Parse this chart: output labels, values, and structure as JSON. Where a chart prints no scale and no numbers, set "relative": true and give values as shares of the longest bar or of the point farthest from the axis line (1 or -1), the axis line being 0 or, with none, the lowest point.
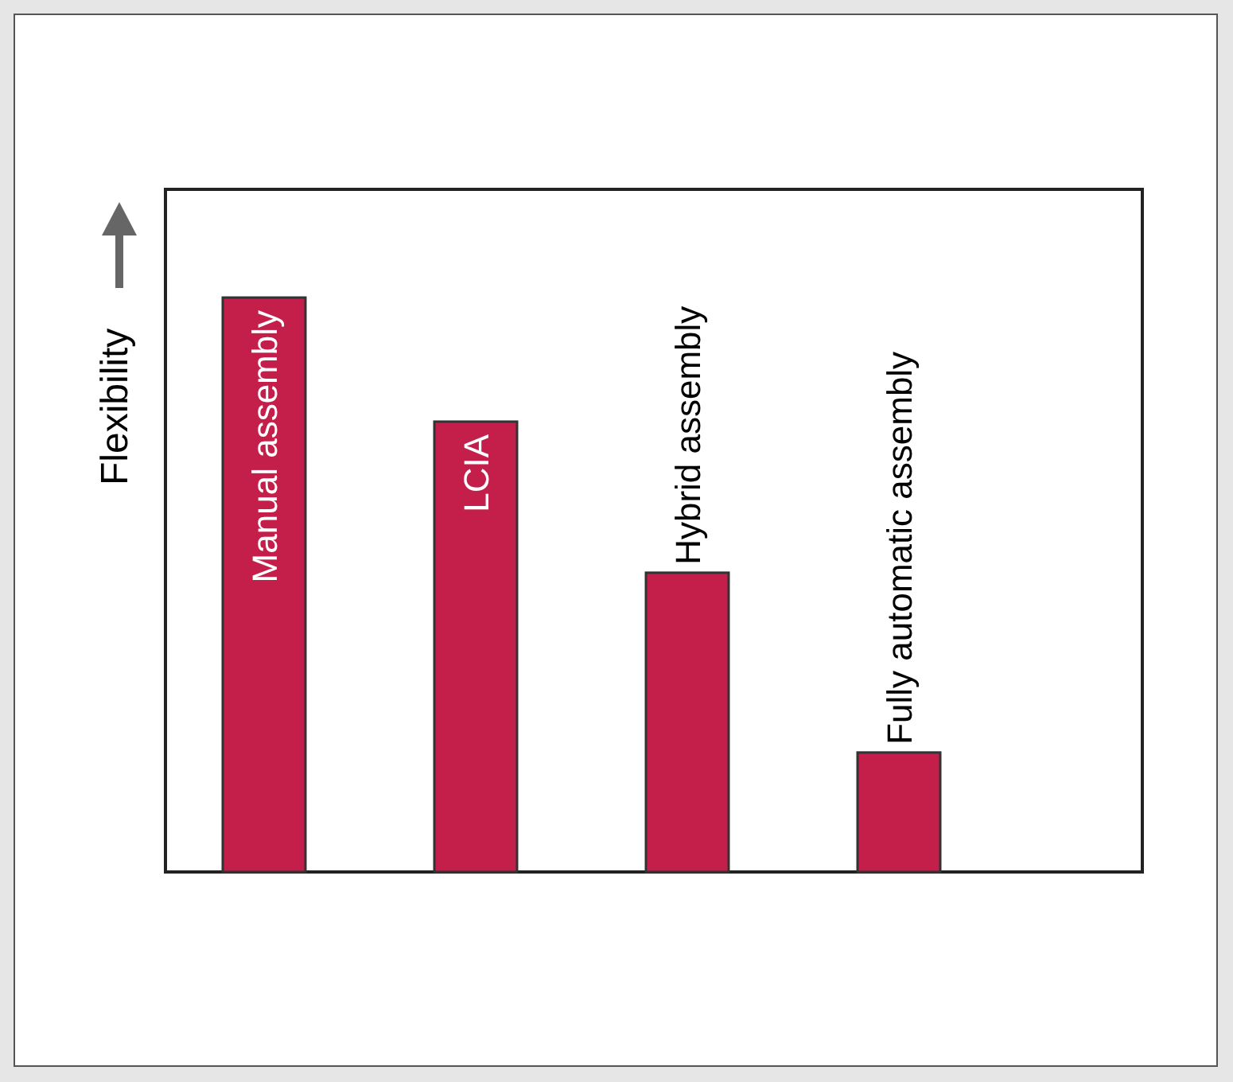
{
  "chart_data": {
    "type": "bar",
    "relative": true,
    "ylabel": "Flexibility",
    "categories": [
      "Manual assembly",
      "LCIA",
      "Hybrid assembly",
      "Fully automatic assembly"
    ],
    "values": [
      1,
      0.784,
      0.521,
      0.208
    ],
    "color": "#c41e4a"
  }
}
